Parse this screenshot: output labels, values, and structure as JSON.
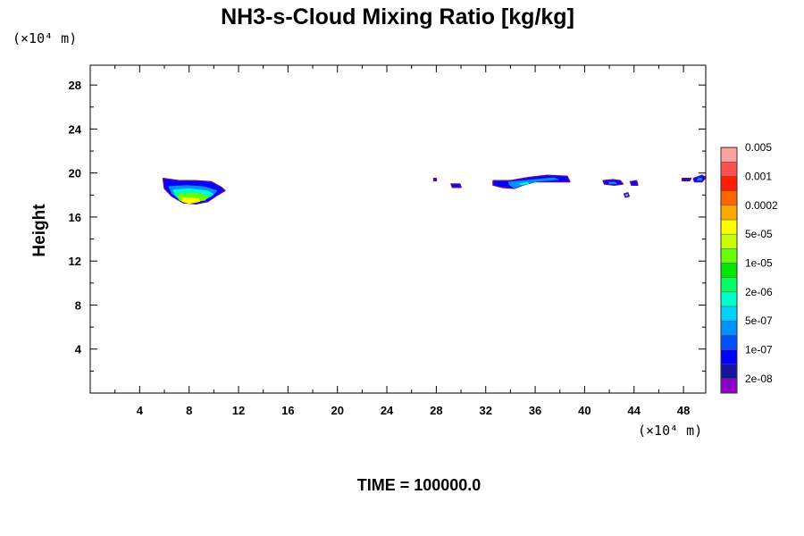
{
  "chart_data": {
    "type": "contour",
    "title": "NH3-s-Cloud Mixing Ratio [kg/kg]",
    "ylabel": "Height",
    "xunit": "(×10⁴ m)",
    "yunit": "(×10⁴ m)",
    "footer": "TIME = 100000.0",
    "xlim": [
      0,
      49.8
    ],
    "ylim": [
      0,
      29.8
    ],
    "xticks": [
      4,
      8,
      12,
      16,
      20,
      24,
      28,
      32,
      36,
      40,
      44,
      48
    ],
    "yticks": [
      4,
      8,
      12,
      16,
      20,
      24,
      28
    ],
    "colorbar": {
      "colors": [
        "#8a00c8",
        "#1414a0",
        "#0000ff",
        "#0050ff",
        "#0090ff",
        "#00d2ff",
        "#00ffc8",
        "#00ff64",
        "#00e600",
        "#64ff00",
        "#c8ff00",
        "#ffff00",
        "#ffaa00",
        "#ff6400",
        "#ff1e00",
        "#ff5050",
        "#ffa0a0"
      ],
      "labels": [
        "2e-08",
        "1e-07",
        "5e-07",
        "2e-06",
        "1e-05",
        "5e-05",
        "0.0002",
        "0.001",
        "0.005"
      ]
    },
    "regions": [
      {
        "levels": [
          {
            "color": "#0000ff",
            "pts": [
              [
                5.9,
                19.5
              ],
              [
                7.2,
                19.3
              ],
              [
                8.5,
                19.3
              ],
              [
                9.8,
                19.2
              ],
              [
                10.6,
                18.7
              ],
              [
                10.9,
                18.4
              ],
              [
                10.3,
                18.0
              ],
              [
                9.5,
                17.4
              ],
              [
                8.6,
                17.2
              ],
              [
                7.5,
                17.3
              ],
              [
                6.6,
                17.9
              ],
              [
                6.0,
                18.6
              ]
            ]
          },
          {
            "color": "#0090ff",
            "pts": [
              [
                6.3,
                18.8
              ],
              [
                7.8,
                18.9
              ],
              [
                9.2,
                18.8
              ],
              [
                10.3,
                18.4
              ],
              [
                9.8,
                17.8
              ],
              [
                8.6,
                17.3
              ],
              [
                7.4,
                17.4
              ],
              [
                6.6,
                18.1
              ]
            ]
          },
          {
            "color": "#00ffc8",
            "pts": [
              [
                6.7,
                18.5
              ],
              [
                8.0,
                18.6
              ],
              [
                9.5,
                18.4
              ],
              [
                10.0,
                18.1
              ],
              [
                9.3,
                17.6
              ],
              [
                8.2,
                17.4
              ],
              [
                7.2,
                17.6
              ],
              [
                6.8,
                18.1
              ]
            ]
          },
          {
            "color": "#64ff00",
            "pts": [
              [
                7.0,
                18.1
              ],
              [
                8.5,
                18.2
              ],
              [
                9.6,
                17.9
              ],
              [
                9.3,
                17.5
              ],
              [
                8.1,
                17.3
              ],
              [
                7.2,
                17.5
              ]
            ]
          },
          {
            "color": "#ffff00",
            "pts": [
              [
                7.4,
                17.8
              ],
              [
                8.8,
                17.7
              ],
              [
                8.9,
                17.4
              ],
              [
                8.0,
                17.2
              ],
              [
                7.4,
                17.4
              ]
            ]
          }
        ]
      },
      {
        "levels": [
          {
            "color": "#0000ff",
            "pts": [
              [
                32.6,
                19.3
              ],
              [
                34.0,
                19.3
              ],
              [
                35.5,
                19.6
              ],
              [
                37.0,
                19.8
              ],
              [
                38.6,
                19.7
              ],
              [
                38.8,
                19.2
              ],
              [
                37.5,
                19.2
              ],
              [
                36.0,
                19.2
              ],
              [
                35.0,
                18.9
              ],
              [
                34.3,
                18.6
              ],
              [
                33.3,
                18.7
              ],
              [
                32.6,
                18.9
              ]
            ]
          },
          {
            "color": "#0090ff",
            "pts": [
              [
                33.8,
                19.2
              ],
              [
                35.5,
                19.4
              ],
              [
                37.5,
                19.6
              ],
              [
                38.0,
                19.4
              ],
              [
                36.2,
                19.2
              ],
              [
                35.0,
                18.9
              ],
              [
                34.3,
                18.6
              ],
              [
                33.9,
                18.9
              ]
            ]
          },
          {
            "color": "#00ffc8",
            "pts": [
              [
                34.6,
                19.0
              ],
              [
                35.4,
                19.2
              ],
              [
                35.5,
                19.0
              ],
              [
                34.9,
                18.9
              ]
            ]
          }
        ]
      },
      {
        "levels": [
          {
            "color": "#0000ff",
            "pts": [
              [
                41.5,
                19.3
              ],
              [
                42.3,
                19.4
              ],
              [
                42.9,
                19.3
              ],
              [
                43.1,
                19.0
              ],
              [
                42.4,
                18.9
              ],
              [
                41.6,
                19.0
              ]
            ]
          },
          {
            "color": "#0090ff",
            "pts": [
              [
                41.9,
                19.2
              ],
              [
                42.5,
                19.2
              ],
              [
                42.6,
                19.0
              ],
              [
                42.0,
                19.0
              ]
            ]
          }
        ]
      },
      {
        "levels": [
          {
            "color": "#0000ff",
            "pts": [
              [
                43.7,
                19.2
              ],
              [
                44.2,
                19.3
              ],
              [
                44.3,
                18.9
              ],
              [
                43.8,
                18.9
              ]
            ]
          }
        ]
      },
      {
        "levels": [
          {
            "color": "#00d2ff",
            "pts": [
              [
                43.2,
                18.1
              ],
              [
                43.5,
                18.2
              ],
              [
                43.6,
                17.9
              ],
              [
                43.3,
                17.8
              ]
            ]
          }
        ]
      },
      {
        "levels": [
          {
            "color": "#0000ff",
            "pts": [
              [
                29.2,
                19.0
              ],
              [
                29.9,
                19.0
              ],
              [
                30.0,
                18.7
              ],
              [
                29.3,
                18.7
              ]
            ]
          }
        ]
      },
      {
        "levels": [
          {
            "color": "#0000ff",
            "pts": [
              [
                47.9,
                19.5
              ],
              [
                48.6,
                19.5
              ],
              [
                48.5,
                19.3
              ],
              [
                47.9,
                19.3
              ]
            ]
          }
        ]
      },
      {
        "levels": [
          {
            "color": "#0000ff",
            "pts": [
              [
                48.8,
                19.5
              ],
              [
                49.5,
                19.8
              ],
              [
                49.8,
                19.6
              ],
              [
                49.5,
                19.2
              ],
              [
                48.9,
                19.2
              ]
            ]
          },
          {
            "color": "#0090ff",
            "pts": [
              [
                49.1,
                19.5
              ],
              [
                49.5,
                19.6
              ],
              [
                49.5,
                19.3
              ],
              [
                49.1,
                19.3
              ]
            ]
          }
        ]
      },
      {
        "levels": [
          {
            "color": "#0000ff",
            "pts": [
              [
                27.8,
                19.5
              ],
              [
                28.0,
                19.5
              ],
              [
                28.0,
                19.3
              ],
              [
                27.8,
                19.3
              ]
            ]
          }
        ]
      }
    ]
  }
}
